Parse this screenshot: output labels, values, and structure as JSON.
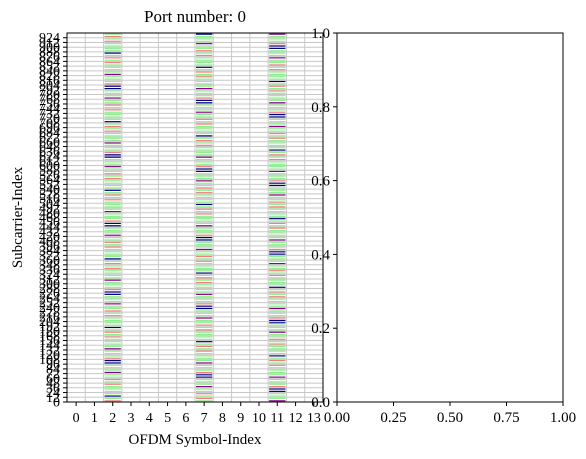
{
  "chart_data": [
    {
      "type": "heatmap",
      "title": "Port number: 0",
      "xlabel": "OFDM Symbol-Index",
      "ylabel": "Subcarrier-Index",
      "xlim": [
        -0.5,
        13.5
      ],
      "ylim": [
        0,
        936
      ],
      "x_ticks": [
        0,
        1,
        2,
        3,
        4,
        5,
        6,
        7,
        8,
        9,
        10,
        11,
        12,
        13
      ],
      "y_ticks": [
        0,
        12,
        24,
        36,
        48,
        60,
        72,
        84,
        96,
        108,
        120,
        132,
        144,
        156,
        168,
        180,
        192,
        204,
        216,
        228,
        240,
        252,
        264,
        276,
        288,
        300,
        312,
        324,
        336,
        348,
        360,
        372,
        384,
        396,
        408,
        420,
        432,
        444,
        456,
        468,
        480,
        492,
        504,
        516,
        528,
        540,
        552,
        564,
        576,
        588,
        600,
        612,
        624,
        636,
        648,
        660,
        672,
        684,
        696,
        708,
        720,
        732,
        744,
        756,
        768,
        780,
        792,
        804,
        816,
        828,
        840,
        852,
        864,
        876,
        888,
        900,
        912,
        924
      ],
      "pilot_symbols": [
        2,
        7,
        11
      ],
      "grid": true,
      "colors": {
        "empty": "#ffffff",
        "grid": "#c8c8c8",
        "pilot_light": "#90ee90",
        "pilot_mid": "#f08080",
        "pilot_dark": "#000080",
        "pilot_accent": "#8b008b"
      }
    },
    {
      "type": "scatter",
      "title": "",
      "xlabel": "",
      "ylabel": "",
      "xlim": [
        0,
        1
      ],
      "ylim": [
        0,
        1
      ],
      "x_ticks": [
        "0.00",
        "0.25",
        "0.50",
        "0.75",
        "1.00"
      ],
      "y_ticks": [
        "0.0",
        "0.2",
        "0.4",
        "0.6",
        "0.8",
        "1.0"
      ],
      "series": []
    }
  ]
}
